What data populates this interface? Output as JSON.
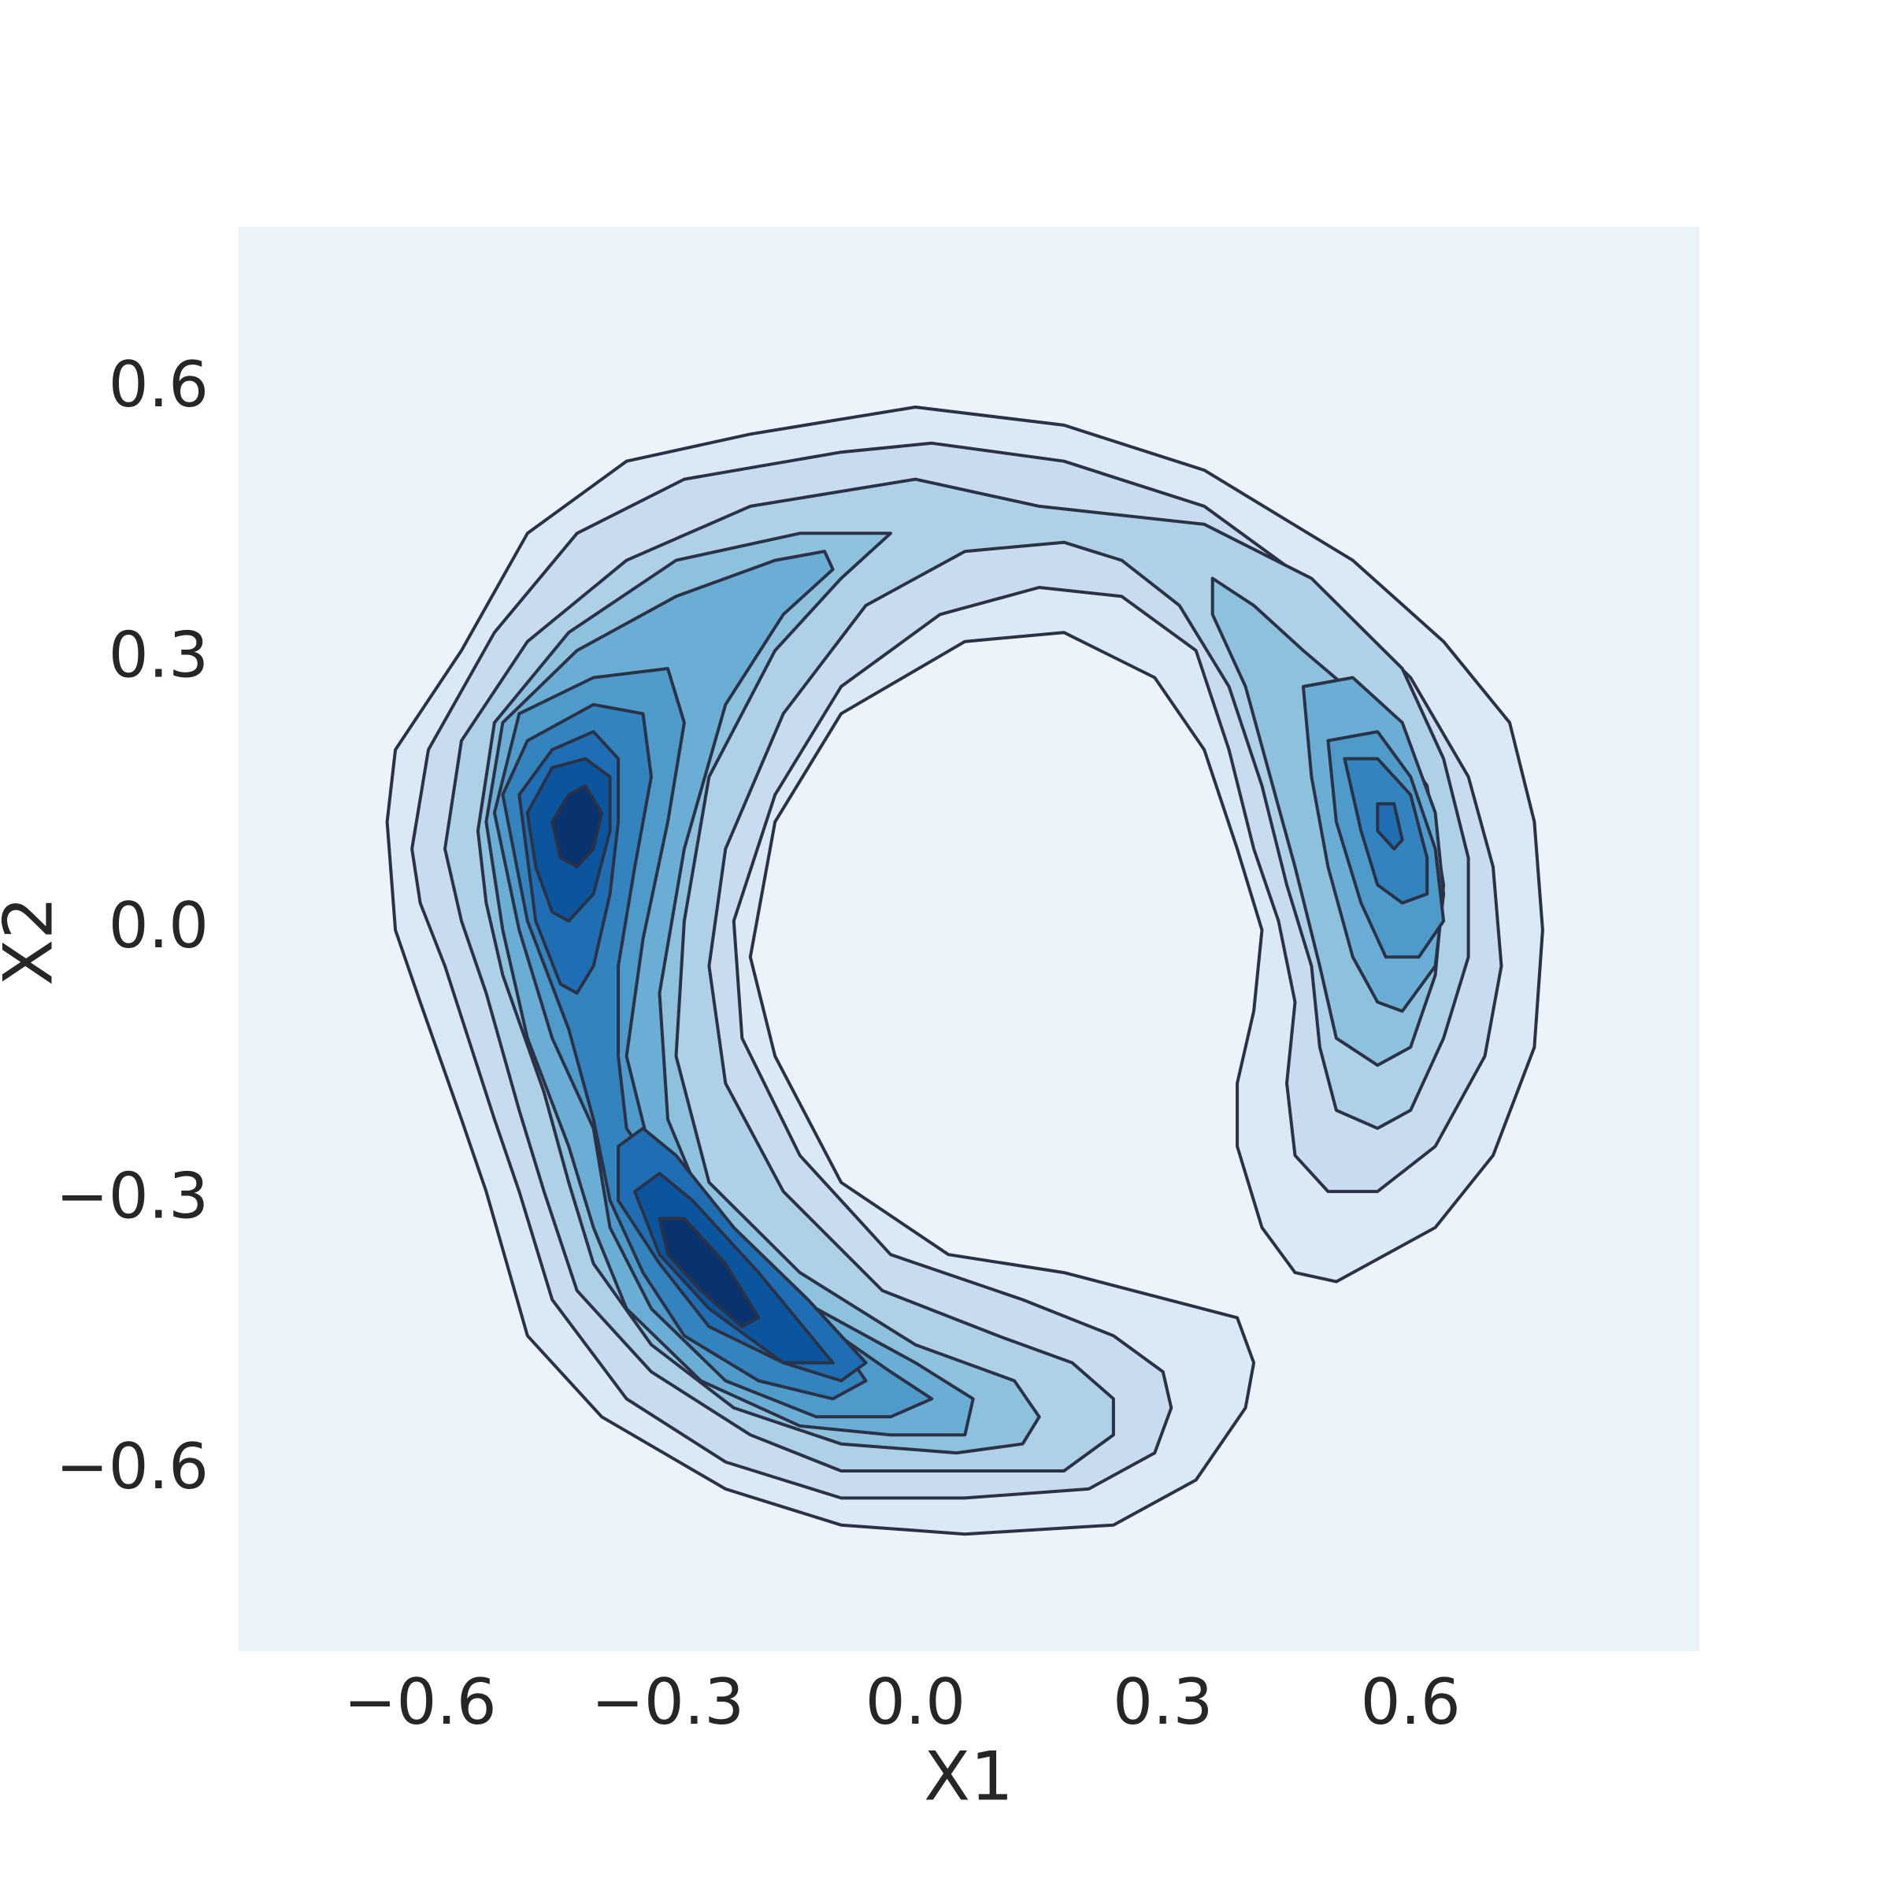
{
  "chart_data": {
    "type": "kde",
    "x_label": "X1",
    "y_label": "X2",
    "xlim": [
      -0.82,
      0.95
    ],
    "ylim": [
      -0.8,
      0.78
    ],
    "xticks": [
      {
        "value": -0.6,
        "label": "−0.6"
      },
      {
        "value": -0.3,
        "label": "−0.3"
      },
      {
        "value": 0,
        "label": "0.0"
      },
      0.3,
      0.6
    ],
    "yticks": [
      {
        "value": -0.6,
        "label": "−0.6"
      },
      {
        "value": -0.3,
        "label": "−0.3"
      },
      {
        "value": 0,
        "label": "0.0"
      },
      0.3,
      0.6
    ],
    "grid": false,
    "background": "#ebf3fb",
    "line_color": "#2b3245",
    "series": [
      {
        "color": "#dbe9f6",
        "x": [
          -0.64,
          -0.63,
          -0.55,
          -0.47,
          -0.35,
          -0.2,
          0.0,
          0.18,
          0.35,
          0.53,
          0.64,
          0.72,
          0.75,
          0.76,
          0.75,
          0.7,
          0.63,
          0.51,
          0.46,
          0.42,
          0.39,
          0.39,
          0.41,
          0.42,
          0.39,
          0.35,
          0.29,
          0.18,
          0.06,
          -0.09,
          -0.17,
          -0.2,
          -0.17,
          -0.09,
          0.04,
          0.18,
          0.39,
          0.41,
          0.4,
          0.34,
          0.24,
          0.06,
          -0.09,
          -0.23,
          -0.38,
          -0.47,
          -0.52,
          -0.55,
          -0.6,
          -0.63
        ],
        "y": [
          0.12,
          0.2,
          0.31,
          0.44,
          0.52,
          0.55,
          0.58,
          0.56,
          0.51,
          0.41,
          0.32,
          0.23,
          0.12,
          0.0,
          -0.13,
          -0.25,
          -0.33,
          -0.39,
          -0.38,
          -0.33,
          -0.24,
          -0.17,
          -0.09,
          0.0,
          0.09,
          0.2,
          0.28,
          0.33,
          0.32,
          0.24,
          0.12,
          -0.03,
          -0.14,
          -0.28,
          -0.36,
          -0.38,
          -0.43,
          -0.48,
          -0.53,
          -0.61,
          -0.66,
          -0.67,
          -0.66,
          -0.62,
          -0.54,
          -0.45,
          -0.29,
          -0.21,
          -0.08,
          0.0
        ]
      },
      {
        "color": "#c9dcef",
        "x": [
          -0.61,
          -0.59,
          -0.51,
          -0.41,
          -0.28,
          -0.09,
          0.02,
          0.18,
          0.35,
          0.5,
          0.6,
          0.67,
          0.7,
          0.71,
          0.69,
          0.63,
          0.56,
          0.5,
          0.46,
          0.45,
          0.46,
          0.44,
          0.41,
          0.38,
          0.34,
          0.25,
          0.15,
          0.03,
          -0.09,
          -0.17,
          -0.22,
          -0.21,
          -0.14,
          -0.03,
          0.13,
          0.24,
          0.3,
          0.31,
          0.29,
          0.21,
          0.06,
          -0.09,
          -0.23,
          -0.35,
          -0.44,
          -0.48,
          -0.51,
          -0.57,
          -0.6
        ],
        "y": [
          0.09,
          0.2,
          0.33,
          0.44,
          0.5,
          0.53,
          0.54,
          0.52,
          0.47,
          0.37,
          0.28,
          0.17,
          0.07,
          -0.04,
          -0.14,
          -0.24,
          -0.29,
          -0.29,
          -0.25,
          -0.17,
          -0.08,
          0.01,
          0.09,
          0.2,
          0.31,
          0.37,
          0.38,
          0.35,
          0.27,
          0.15,
          0.01,
          -0.12,
          -0.25,
          -0.36,
          -0.41,
          -0.45,
          -0.49,
          -0.53,
          -0.58,
          -0.62,
          -0.63,
          -0.63,
          -0.59,
          -0.52,
          -0.41,
          -0.29,
          -0.21,
          -0.04,
          0.03
        ]
      },
      {
        "color": "#aed1e7",
        "x": [
          -0.57,
          -0.55,
          -0.47,
          -0.35,
          -0.2,
          0.0,
          0.15,
          0.35,
          0.48,
          0.59,
          0.64,
          0.67,
          0.67,
          0.64,
          0.6,
          0.56,
          0.51,
          0.49,
          0.48,
          0.45,
          0.42,
          0.38,
          0.32,
          0.25,
          0.18,
          0.06,
          -0.06,
          -0.16,
          -0.23,
          -0.25,
          -0.23,
          -0.16,
          -0.04,
          0.1,
          0.19,
          0.24,
          0.24,
          0.18,
          0.06,
          -0.09,
          -0.2,
          -0.32,
          -0.41,
          -0.45,
          -0.48,
          -0.52,
          -0.55
        ],
        "y": [
          0.09,
          0.21,
          0.32,
          0.41,
          0.47,
          0.5,
          0.47,
          0.45,
          0.39,
          0.29,
          0.19,
          0.08,
          -0.03,
          -0.12,
          -0.2,
          -0.22,
          -0.2,
          -0.13,
          -0.04,
          0.05,
          0.16,
          0.27,
          0.36,
          0.41,
          0.43,
          0.42,
          0.36,
          0.24,
          0.09,
          -0.04,
          -0.17,
          -0.29,
          -0.4,
          -0.45,
          -0.48,
          -0.52,
          -0.56,
          -0.6,
          -0.6,
          -0.6,
          -0.56,
          -0.49,
          -0.4,
          -0.29,
          -0.2,
          -0.07,
          0.01
        ]
      },
      {
        "color": "#8ec1de",
        "x": [
          -0.53,
          -0.51,
          -0.42,
          -0.29,
          -0.14,
          -0.03,
          -0.09,
          -0.17,
          -0.25,
          -0.28,
          -0.29,
          -0.25,
          -0.14,
          0.0,
          0.12,
          0.15,
          0.13,
          0.05,
          -0.09,
          -0.22,
          -0.32,
          -0.39,
          -0.42,
          -0.45,
          -0.5,
          -0.52,
          null,
          0.36,
          0.41,
          0.47,
          0.56,
          0.62,
          0.64,
          0.63,
          0.6,
          0.56,
          0.51,
          0.49,
          0.46,
          0.43,
          0.4,
          0.36
        ],
        "y": [
          0.11,
          0.23,
          0.33,
          0.41,
          0.44,
          0.44,
          0.39,
          0.31,
          0.17,
          0.01,
          -0.14,
          -0.28,
          -0.38,
          -0.46,
          -0.5,
          -0.54,
          -0.57,
          -0.58,
          -0.57,
          -0.53,
          -0.46,
          -0.37,
          -0.28,
          -0.18,
          -0.05,
          0.03,
          null,
          0.39,
          0.36,
          0.31,
          0.24,
          0.16,
          0.05,
          -0.05,
          -0.13,
          -0.15,
          -0.12,
          -0.04,
          0.07,
          0.17,
          0.27,
          0.35
        ]
      },
      {
        "color": "#6aaed6",
        "x": [
          -0.52,
          -0.5,
          -0.41,
          -0.29,
          -0.17,
          -0.11,
          -0.1,
          -0.16,
          -0.23,
          -0.28,
          -0.31,
          -0.3,
          -0.25,
          -0.14,
          0.0,
          0.07,
          0.06,
          -0.03,
          -0.14,
          -0.26,
          -0.35,
          -0.39,
          -0.42,
          -0.47,
          -0.5,
          null,
          0.47,
          0.53,
          0.59,
          0.63,
          0.64,
          0.63,
          0.59,
          0.56,
          0.53,
          0.5,
          0.48
        ],
        "y": [
          0.12,
          0.23,
          0.31,
          0.37,
          0.41,
          0.42,
          0.4,
          0.35,
          0.25,
          0.09,
          -0.07,
          -0.21,
          -0.32,
          -0.41,
          -0.48,
          -0.52,
          -0.56,
          -0.56,
          -0.55,
          -0.5,
          -0.42,
          -0.33,
          -0.24,
          -0.12,
          0.0,
          null,
          0.27,
          0.28,
          0.23,
          0.13,
          0.04,
          -0.04,
          -0.09,
          -0.08,
          -0.03,
          0.07,
          0.17
        ]
      },
      {
        "color": "#4e9acb",
        "x": [
          -0.51,
          -0.48,
          -0.39,
          -0.3,
          -0.28,
          -0.3,
          -0.33,
          -0.35,
          -0.32,
          -0.25,
          -0.14,
          -0.03,
          0.02,
          -0.03,
          -0.12,
          -0.23,
          -0.32,
          -0.37,
          -0.39,
          -0.44,
          -0.48,
          null,
          0.5,
          0.56,
          0.6,
          0.63,
          0.64,
          0.61,
          0.57,
          0.54,
          0.51
        ],
        "y": [
          0.13,
          0.24,
          0.28,
          0.29,
          0.23,
          0.12,
          -0.01,
          -0.14,
          -0.25,
          -0.34,
          -0.42,
          -0.49,
          -0.52,
          -0.54,
          -0.54,
          -0.5,
          -0.42,
          -0.33,
          -0.22,
          -0.12,
          0.0,
          null,
          0.21,
          0.22,
          0.17,
          0.09,
          0.01,
          -0.03,
          -0.03,
          0.03,
          0.12
        ]
      },
      {
        "color": "#3383be",
        "x": [
          -0.5,
          -0.47,
          -0.39,
          -0.33,
          -0.32,
          -0.34,
          -0.36,
          -0.36,
          -0.35,
          -0.29,
          -0.2,
          -0.09,
          -0.06,
          -0.1,
          -0.19,
          -0.28,
          -0.33,
          -0.37,
          -0.39,
          -0.42,
          -0.47,
          null,
          0.52,
          0.56,
          0.6,
          0.62,
          0.62,
          0.59,
          0.56,
          0.54
        ],
        "y": [
          0.15,
          0.21,
          0.25,
          0.24,
          0.17,
          0.07,
          -0.04,
          -0.14,
          -0.22,
          -0.3,
          -0.38,
          -0.46,
          -0.5,
          -0.52,
          -0.5,
          -0.45,
          -0.38,
          -0.3,
          -0.21,
          -0.11,
          0.01,
          null,
          0.19,
          0.19,
          0.15,
          0.08,
          0.04,
          0.03,
          0.05,
          0.11
        ]
      },
      {
        "color": "#1f6eb3",
        "x": [
          -0.48,
          -0.44,
          -0.39,
          -0.36,
          -0.36,
          -0.37,
          -0.39,
          -0.41,
          -0.43,
          -0.46,
          -0.47,
          null,
          -0.36,
          -0.33,
          -0.29,
          -0.22,
          -0.13,
          -0.06,
          -0.09,
          -0.16,
          -0.25,
          -0.31,
          -0.36,
          null,
          0.56,
          0.58,
          0.59,
          0.58,
          0.56
        ],
        "y": [
          0.15,
          0.2,
          0.22,
          0.19,
          0.12,
          0.04,
          -0.04,
          -0.07,
          -0.06,
          0.01,
          0.08,
          null,
          -0.24,
          -0.22,
          -0.25,
          -0.33,
          -0.41,
          -0.48,
          -0.5,
          -0.48,
          -0.44,
          -0.37,
          -0.3,
          null,
          0.14,
          0.14,
          0.1,
          0.09,
          0.11
        ]
      },
      {
        "color": "#0b559f",
        "x": [
          -0.47,
          -0.44,
          -0.4,
          -0.37,
          -0.37,
          -0.39,
          -0.42,
          -0.44,
          -0.46,
          null,
          -0.34,
          -0.31,
          -0.27,
          -0.19,
          -0.1,
          -0.16,
          -0.25,
          -0.31
        ],
        "y": [
          0.13,
          0.18,
          0.19,
          0.17,
          0.11,
          0.04,
          0.01,
          0.02,
          0.07,
          null,
          -0.29,
          -0.27,
          -0.3,
          -0.38,
          -0.48,
          -0.48,
          -0.42,
          -0.36
        ]
      },
      {
        "color": "#08336e",
        "x": [
          -0.44,
          -0.42,
          -0.4,
          -0.38,
          -0.39,
          -0.41,
          -0.43,
          null,
          -0.31,
          -0.28,
          -0.23,
          -0.19,
          -0.21,
          -0.26,
          -0.3
        ],
        "y": [
          0.12,
          0.15,
          0.16,
          0.13,
          0.09,
          0.07,
          0.08,
          null,
          -0.32,
          -0.32,
          -0.37,
          -0.43,
          -0.44,
          -0.4,
          -0.36
        ]
      }
    ]
  }
}
